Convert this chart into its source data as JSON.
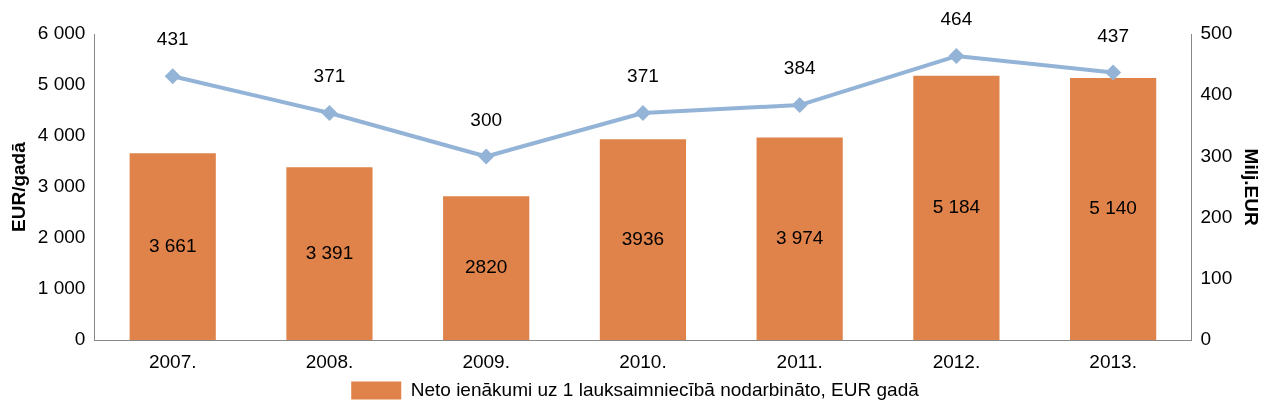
{
  "chart_data": {
    "type": "bar",
    "categories": [
      "2007.",
      "2008.",
      "2009.",
      "2010.",
      "2011.",
      "2012.",
      "2013."
    ],
    "ylabel": "EUR/gadā",
    "y2label": "Milj.EUR",
    "ylim": [
      0,
      6000
    ],
    "yticks": [
      0,
      {
        "value": 1000,
        "label": "1 000"
      },
      {
        "value": 2000,
        "label": "2 000"
      },
      {
        "value": 3000,
        "label": "3 000"
      },
      {
        "value": 4000,
        "label": "4 000"
      },
      {
        "value": 5000,
        "label": "5 000"
      },
      {
        "value": 6000,
        "label": "6 000"
      }
    ],
    "y2lim": [
      0,
      500
    ],
    "y2ticks": [
      0,
      100,
      200,
      300,
      400,
      500
    ],
    "legend": "bottom",
    "grid": false,
    "series": [
      {
        "name": "Neto ienākumi uz 1 lauksaimniecībā nodarbināto, EUR gadā",
        "color": "#e0834a",
        "values": [
          3661,
          3391,
          2820,
          3936,
          3974,
          5184,
          5140
        ],
        "value_labels": [
          "3 661",
          "3 391",
          "2820",
          "3936",
          "3 974",
          "5 184",
          "5 140"
        ]
      },
      {
        "type": "line",
        "axis": "y2",
        "color": "#93b3d7",
        "marker": "diamond",
        "line_style": "solid",
        "values": [
          431,
          371,
          300,
          371,
          384,
          464,
          437
        ],
        "value_labels": [
          "431",
          "371",
          "300",
          "371",
          "384",
          "464",
          "437"
        ]
      }
    ]
  }
}
